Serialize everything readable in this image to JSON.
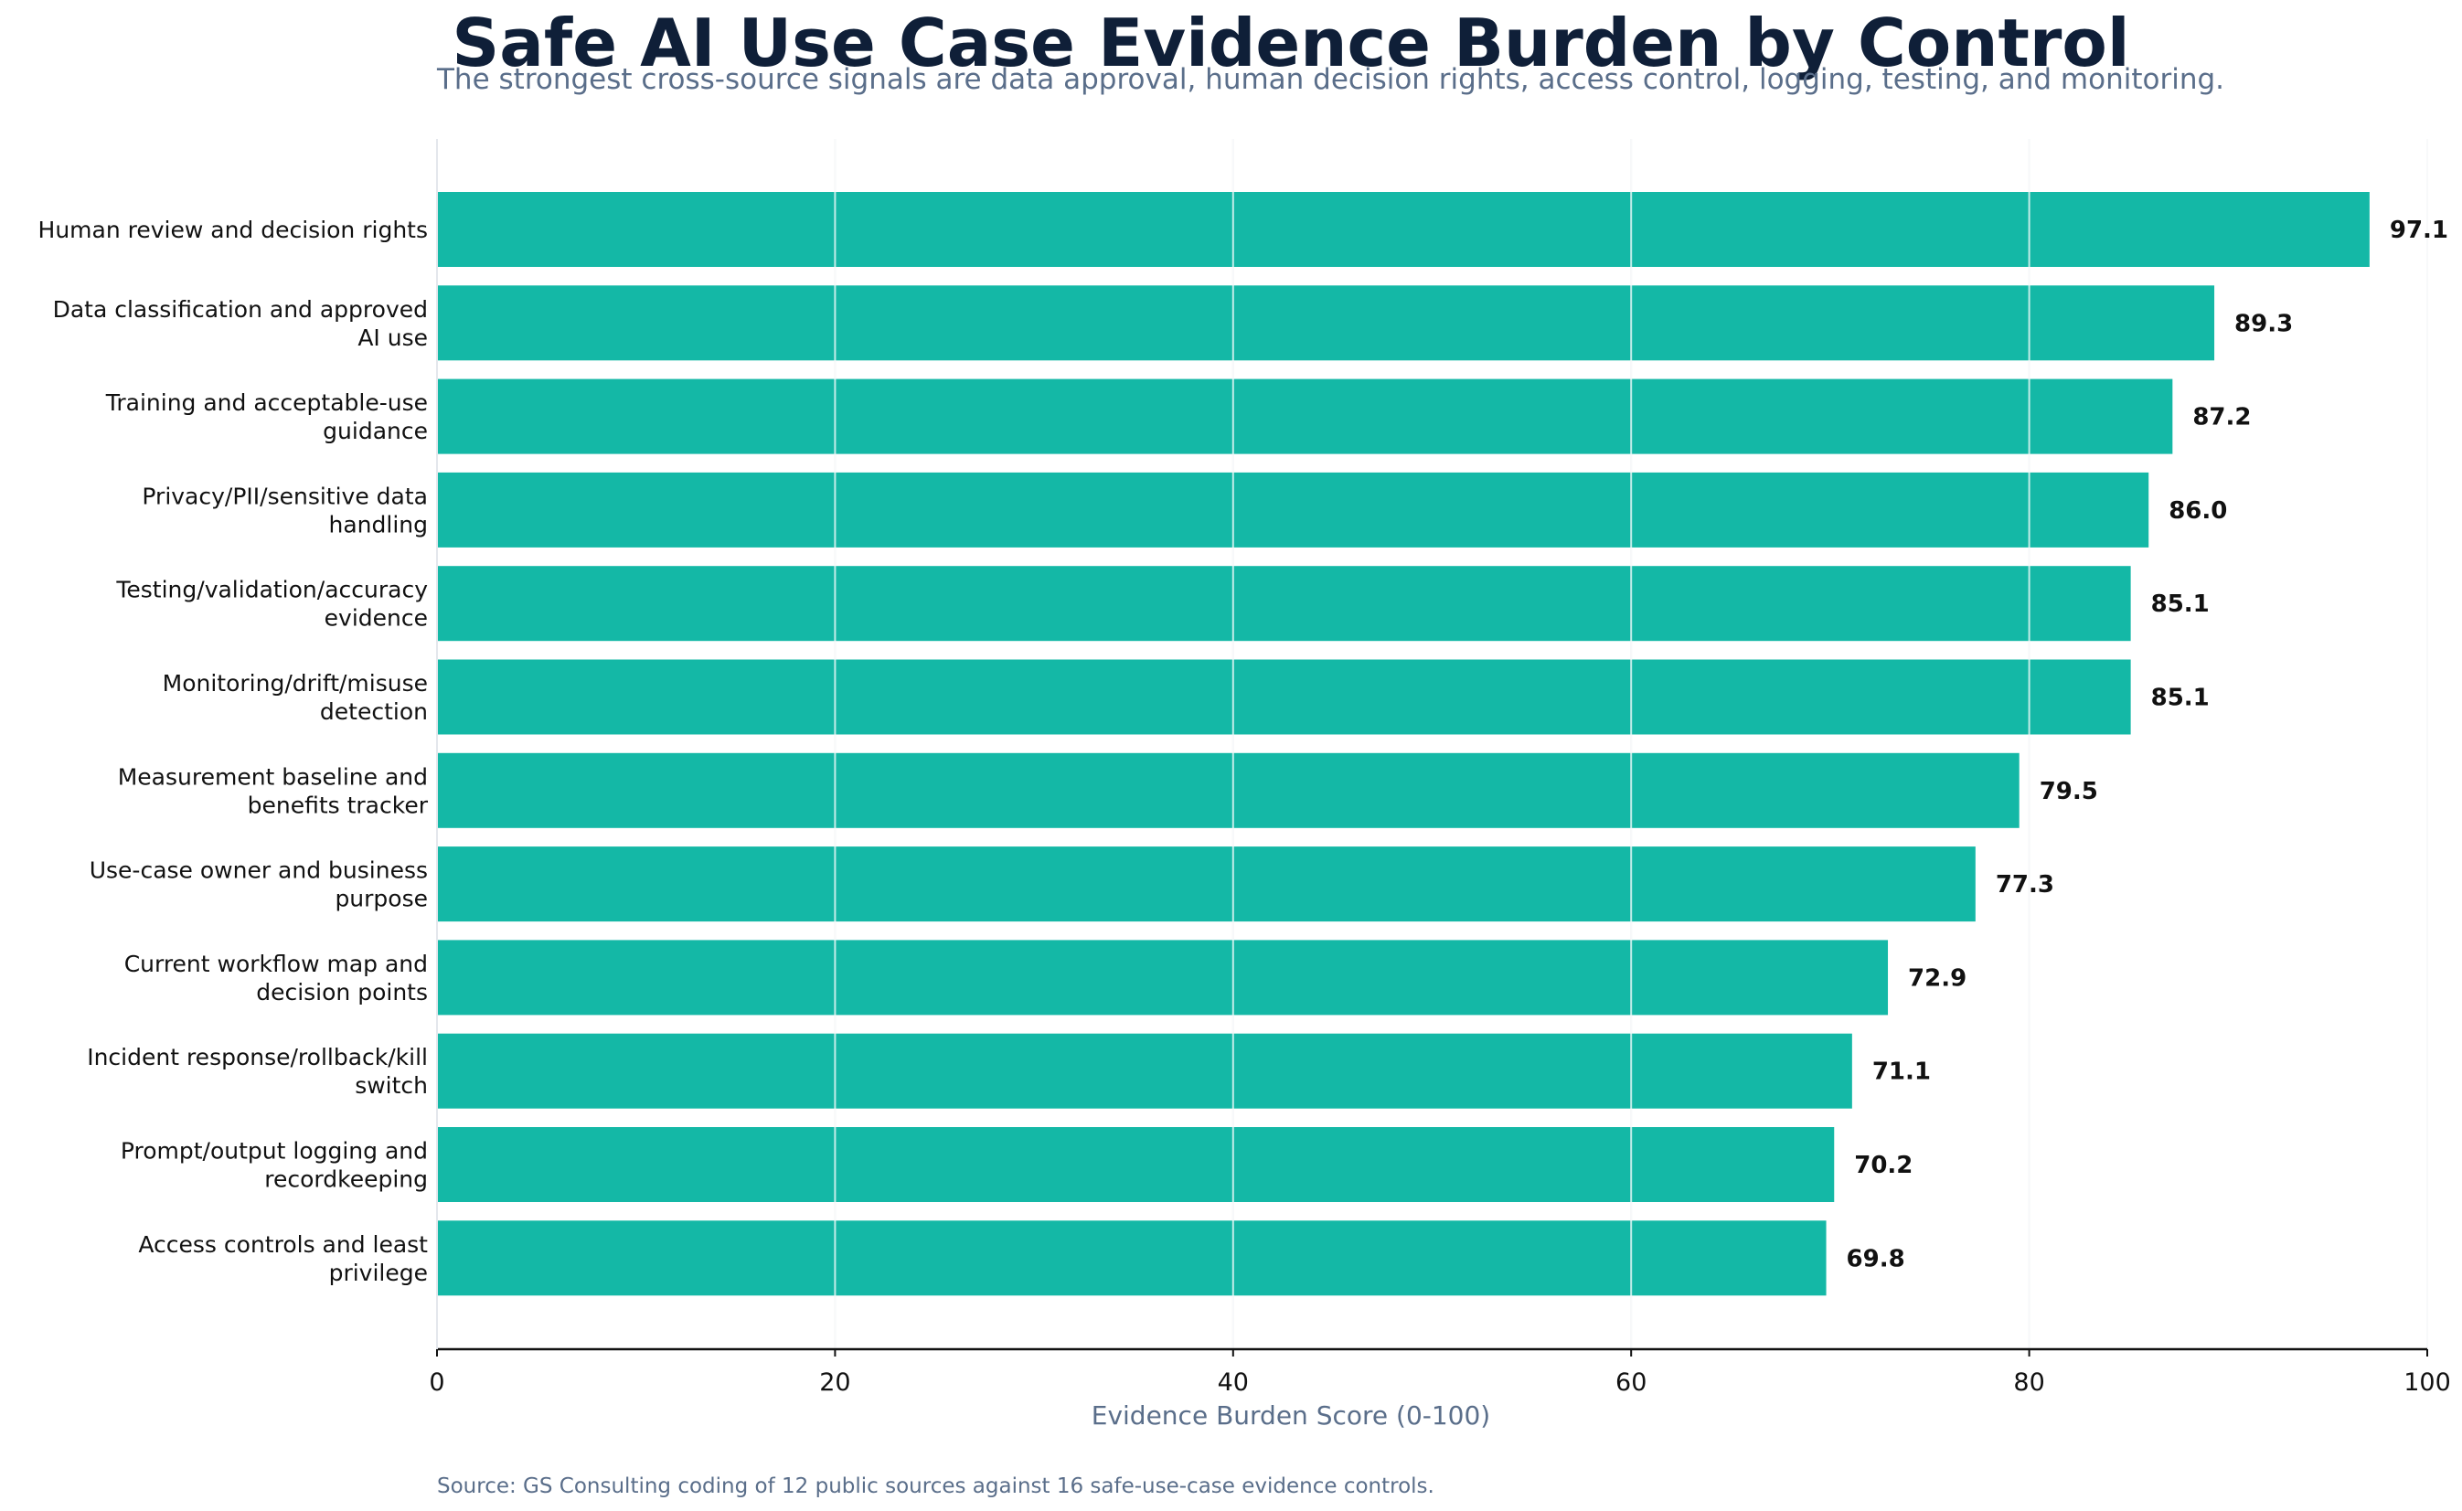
{
  "chart_data": {
    "type": "bar",
    "orientation": "horizontal",
    "title": "Safe AI Use Case Evidence Burden by Control",
    "subtitle": "The strongest cross-source signals are data approval, human decision rights, access control, logging, testing, and monitoring.",
    "xlabel": "Evidence Burden Score (0-100)",
    "ylabel": "",
    "xlim": [
      0,
      100
    ],
    "xticks": [
      0,
      20,
      40,
      60,
      80,
      100
    ],
    "grid": "vertical",
    "bar_color": "#14b8a6",
    "categories": [
      [
        "Human review and decision rights"
      ],
      [
        "Data classification and approved",
        "AI use"
      ],
      [
        "Training and acceptable-use",
        "guidance"
      ],
      [
        "Privacy/PII/sensitive data",
        "handling"
      ],
      [
        "Testing/validation/accuracy",
        "evidence"
      ],
      [
        "Monitoring/drift/misuse",
        "detection"
      ],
      [
        "Measurement baseline and",
        "benefits tracker"
      ],
      [
        "Use-case owner and business",
        "purpose"
      ],
      [
        "Current workflow map and",
        "decision points"
      ],
      [
        "Incident response/rollback/kill",
        "switch"
      ],
      [
        "Prompt/output logging and",
        "recordkeeping"
      ],
      [
        "Access controls and least",
        "privilege"
      ]
    ],
    "values": [
      97.1,
      89.3,
      87.2,
      86.0,
      85.1,
      85.1,
      79.5,
      77.3,
      72.9,
      71.1,
      70.2,
      69.8
    ],
    "value_labels": [
      "97.1",
      "89.3",
      "87.2",
      "86.0",
      "85.1",
      "85.1",
      "79.5",
      "77.3",
      "72.9",
      "71.1",
      "70.2",
      "69.8"
    ],
    "source": "Source: GS Consulting coding of 12 public sources against 16 safe-use-case evidence controls."
  }
}
